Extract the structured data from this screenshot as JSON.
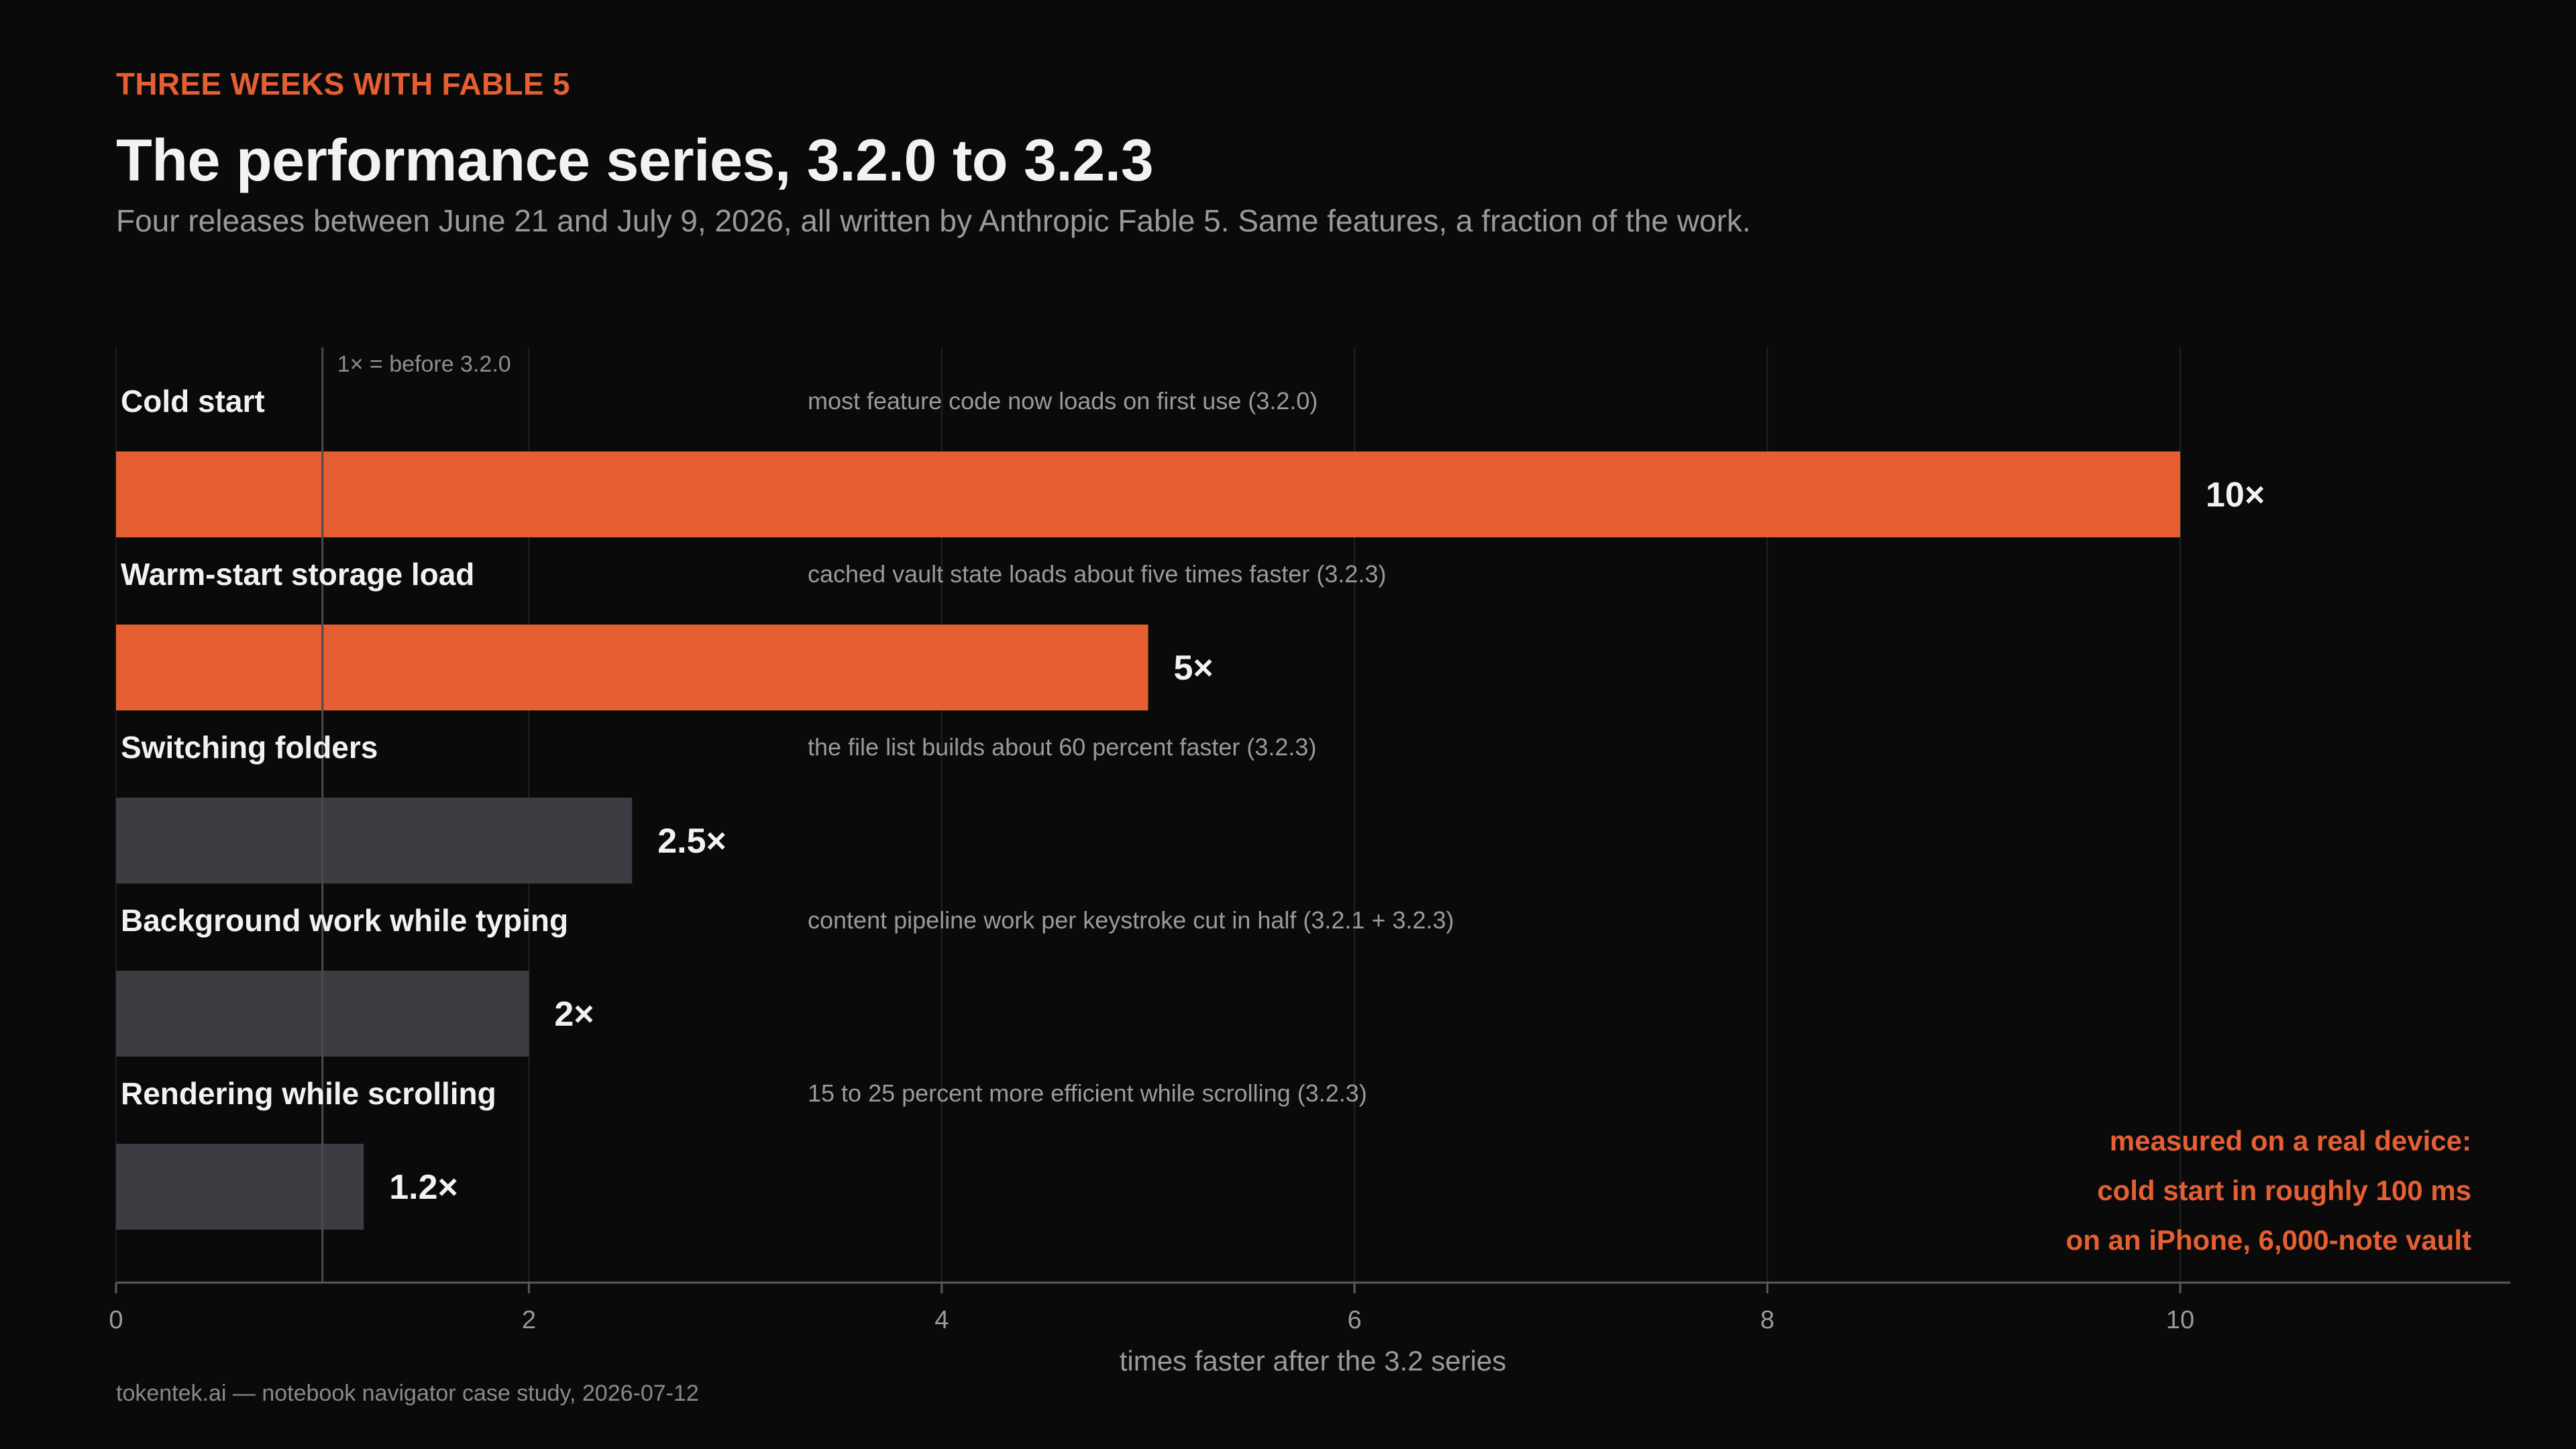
{
  "kicker": "THREE WEEKS WITH FABLE 5",
  "title": "The performance series, 3.2.0 to 3.2.3",
  "subtitle": "Four releases between June 21 and July 9, 2026, all written by Anthropic Fable 5. Same features, a fraction of the work.",
  "footer": "tokentek.ai — notebook navigator case study, 2026-07-12",
  "callout": {
    "line1": "measured on a real device:",
    "line2": "cold start in roughly 100 ms",
    "line3": "on an iPhone, 6,000-note vault"
  },
  "colors": {
    "accent": "#e55f33",
    "muted_bar": "#3d3c42",
    "background": "#0a0a0a"
  },
  "chart_data": {
    "type": "bar",
    "orientation": "horizontal",
    "categories": [
      "Cold start",
      "Warm-start storage load",
      "Switching folders",
      "Background work while typing",
      "Rendering while scrolling"
    ],
    "values": [
      10,
      5,
      2.5,
      2,
      1.2
    ],
    "value_labels": [
      "10×",
      "5×",
      "2.5×",
      "2×",
      "1.2×"
    ],
    "notes": [
      "most feature code now loads on first use   (3.2.0)",
      "cached vault state loads about five times faster   (3.2.3)",
      "the file list builds about 60 percent faster   (3.2.3)",
      "content pipeline work per keystroke cut in half   (3.2.1 + 3.2.3)",
      "15 to 25 percent more efficient while scrolling   (3.2.3)"
    ],
    "highlighted": [
      true,
      true,
      false,
      false,
      false
    ],
    "xlabel": "times faster after the 3.2 series",
    "xlim": [
      0,
      11.6
    ],
    "xticks": [
      0,
      2,
      4,
      6,
      8,
      10
    ],
    "reference_line": {
      "value": 1,
      "label": "1× = before 3.2.0"
    },
    "grid": true
  }
}
